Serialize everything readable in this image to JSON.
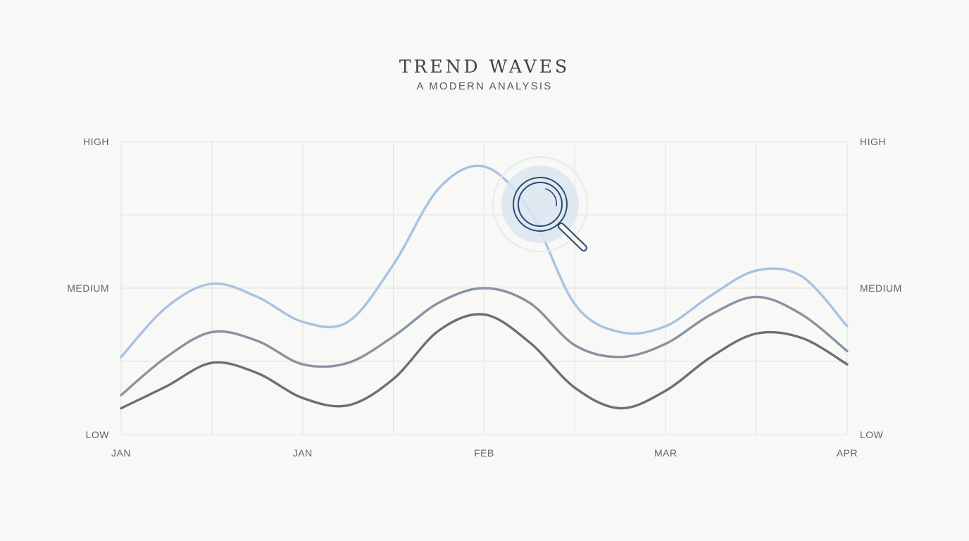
{
  "title": "TREND WAVES",
  "subtitle": "A MODERN ANALYSIS",
  "colors": {
    "background": "#f8f8f6",
    "grid": "#e4e4e2",
    "series_top": "#a7c3e0",
    "series_middle": "#8793a3",
    "series_bottom": "#6e6f74",
    "magnifier": "#2e4a6e",
    "magnifier_halo": "#dce6f1"
  },
  "icons": {
    "highlight": "magnifying-glass-icon"
  },
  "chart_data": {
    "type": "line",
    "x": [
      0,
      0.5,
      1,
      1.5,
      2,
      2.5,
      3,
      3.5,
      4,
      4.5,
      5,
      5.5,
      6,
      6.5,
      7,
      7.5,
      8
    ],
    "x_ticks": [
      {
        "x": 0,
        "label": "JAN"
      },
      {
        "x": 2,
        "label": "JAN"
      },
      {
        "x": 4,
        "label": "FEB"
      },
      {
        "x": 6,
        "label": "MAR"
      },
      {
        "x": 8,
        "label": "APR"
      }
    ],
    "y_ticks": [
      {
        "y": 0,
        "label": "LOW"
      },
      {
        "y": 1,
        "label": "MEDIUM"
      },
      {
        "y": 2,
        "label": "HIGH"
      }
    ],
    "ylim": [
      0,
      2
    ],
    "xlim": [
      0,
      8
    ],
    "grid": true,
    "series": [
      {
        "values": [
          0.53,
          0.87,
          1.03,
          0.94,
          0.77,
          0.77,
          1.16,
          1.68,
          1.83,
          1.53,
          0.89,
          0.7,
          0.74,
          0.95,
          1.12,
          1.08,
          0.74
        ]
      },
      {
        "values": [
          0.27,
          0.53,
          0.7,
          0.64,
          0.48,
          0.49,
          0.67,
          0.9,
          1.0,
          0.9,
          0.61,
          0.53,
          0.62,
          0.82,
          0.94,
          0.82,
          0.57
        ]
      },
      {
        "values": [
          0.18,
          0.33,
          0.49,
          0.42,
          0.25,
          0.2,
          0.38,
          0.71,
          0.82,
          0.63,
          0.32,
          0.18,
          0.3,
          0.53,
          0.69,
          0.66,
          0.48
        ]
      }
    ]
  }
}
